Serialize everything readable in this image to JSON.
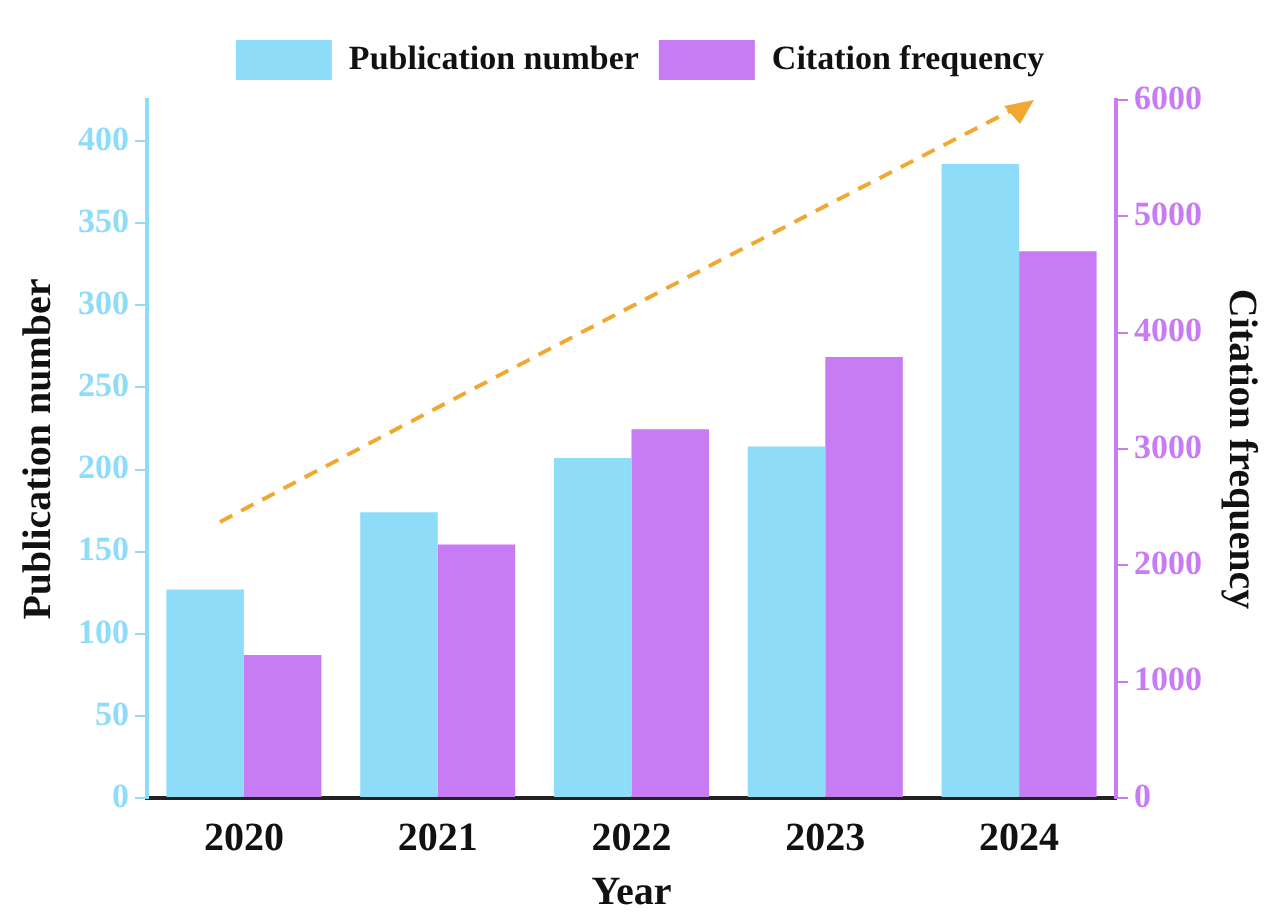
{
  "chart_data": {
    "type": "bar",
    "xlabel": "Year",
    "ylabel": "Publication number",
    "y2label": "Citation frequency",
    "categories": [
      "2020",
      "2021",
      "2022",
      "2023",
      "2024"
    ],
    "series": [
      {
        "name": "Publication number",
        "color": "#8fdcf8",
        "values": [
          127,
          174,
          207,
          214,
          386
        ]
      },
      {
        "name": "Citation frequency",
        "color": "#c77cf5",
        "axis": "y2",
        "values": [
          1230,
          2180,
          3170,
          3790,
          4700
        ]
      }
    ],
    "ylim": [
      0,
      425
    ],
    "yticks": [
      0,
      50,
      100,
      150,
      200,
      250,
      300,
      350,
      400
    ],
    "y2lim": [
      0,
      6000
    ],
    "y2ticks": [
      0,
      1000,
      2000,
      3000,
      4000,
      5000,
      6000
    ],
    "grid": false,
    "legend": "top"
  }
}
